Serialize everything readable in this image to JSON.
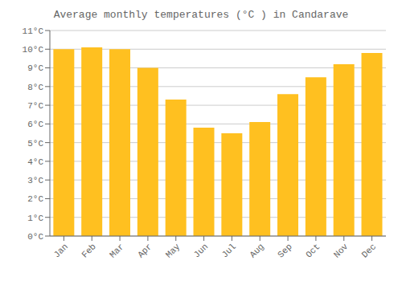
{
  "chart_data": {
    "type": "bar",
    "title": "Average monthly temperatures (°C ) in Candarave",
    "categories": [
      "Jan",
      "Feb",
      "Mar",
      "Apr",
      "May",
      "Jun",
      "Jul",
      "Aug",
      "Sep",
      "Oct",
      "Nov",
      "Dec"
    ],
    "values": [
      10.0,
      10.1,
      10.0,
      9.0,
      7.3,
      5.8,
      5.5,
      6.1,
      7.6,
      8.5,
      9.2,
      9.8
    ],
    "color": "#FFC020",
    "ylim": [
      0,
      11
    ],
    "yticks": [
      {
        "value": 0,
        "label": "0°C"
      },
      {
        "value": 1,
        "label": "1°C"
      },
      {
        "value": 2,
        "label": "2°C"
      },
      {
        "value": 3,
        "label": "3°C"
      },
      {
        "value": 4,
        "label": "4°C"
      },
      {
        "value": 5,
        "label": "5°C"
      },
      {
        "value": 6,
        "label": "6°C"
      },
      {
        "value": 7,
        "label": "7°C"
      },
      {
        "value": 8,
        "label": "8°C"
      },
      {
        "value": 9,
        "label": "9°C"
      },
      {
        "value": 10,
        "label": "10°C"
      },
      {
        "value": 11,
        "label": "11°C"
      }
    ],
    "grid": true
  }
}
